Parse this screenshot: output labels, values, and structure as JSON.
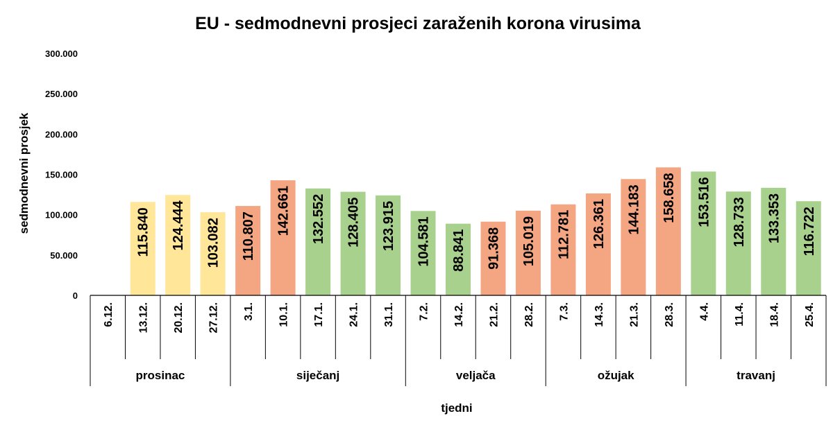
{
  "chart_data": {
    "type": "bar",
    "title": "EU - sedmodnevni prosjeci zaraženih korona virusima",
    "xlabel": "tjedni",
    "ylabel": "sedmodnevni prosjek",
    "ylim": [
      0,
      300000
    ],
    "y_ticks": [
      "0",
      "50.000",
      "100.000",
      "150.000",
      "200.000",
      "250.000",
      "300.000"
    ],
    "grid": false,
    "categories": [
      "6.12.",
      "13.12.",
      "20.12.",
      "27.12.",
      "3.1.",
      "10.1.",
      "17.1.",
      "24.1.",
      "31.1.",
      "7.2.",
      "14.2.",
      "21.2.",
      "28.2.",
      "7.3.",
      "14.3.",
      "21.3.",
      "28.3.",
      "4.4.",
      "11.4.",
      "18.4.",
      "25.4."
    ],
    "values": [
      null,
      115840,
      124444,
      103082,
      110807,
      142661,
      132552,
      128405,
      123915,
      104581,
      88841,
      91368,
      105019,
      112781,
      126361,
      144183,
      158658,
      153516,
      128733,
      133353,
      116722
    ],
    "data_labels": [
      "",
      "115.840",
      "124.444",
      "103.082",
      "110.807",
      "142.661",
      "132.552",
      "128.405",
      "123.915",
      "104.581",
      "88.841",
      "91.368",
      "105.019",
      "112.781",
      "126.361",
      "144.183",
      "158.658",
      "153.516",
      "128.733",
      "133.353",
      "116.722"
    ],
    "bar_colors": [
      "#ffe699",
      "#ffe699",
      "#ffe699",
      "#ffe699",
      "#f4a582",
      "#f4a582",
      "#a9d18e",
      "#a9d18e",
      "#a9d18e",
      "#a9d18e",
      "#a9d18e",
      "#f4a582",
      "#f4a582",
      "#f4a582",
      "#f4a582",
      "#f4a582",
      "#f4a582",
      "#a9d18e",
      "#a9d18e",
      "#a9d18e",
      "#a9d18e"
    ],
    "groups": [
      {
        "label": "prosinac",
        "start": 0,
        "count": 4
      },
      {
        "label": "siječanj",
        "start": 4,
        "count": 5
      },
      {
        "label": "veljača",
        "start": 9,
        "count": 4
      },
      {
        "label": "ožujak",
        "start": 13,
        "count": 4
      },
      {
        "label": "travanj",
        "start": 17,
        "count": 4
      }
    ]
  }
}
